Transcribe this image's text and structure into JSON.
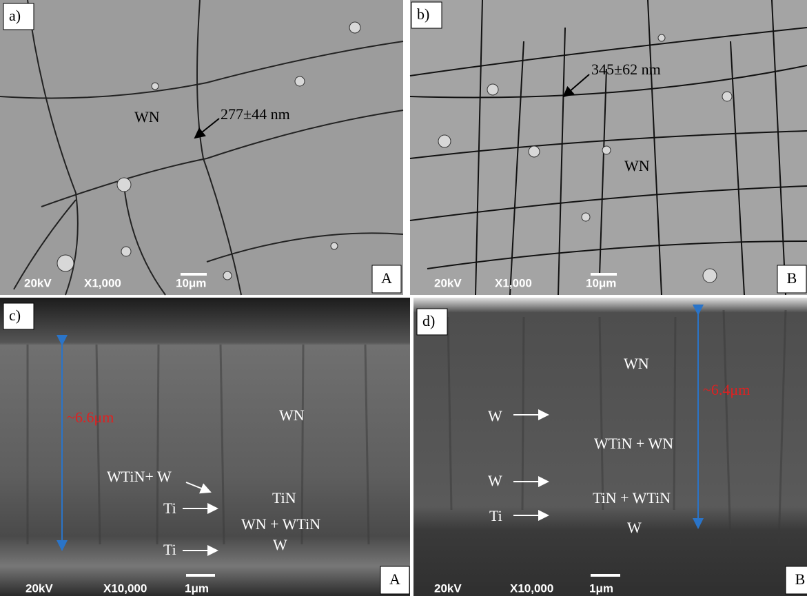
{
  "panels": [
    {
      "label": "a)",
      "corner": "A",
      "voltage": "20kV",
      "magnification": "X1,000",
      "scale": "10μm",
      "annotations": [
        "277±44 nm",
        "WN"
      ]
    },
    {
      "label": "b)",
      "corner": "B",
      "voltage": "20kV",
      "magnification": "X1,000",
      "scale": "10μm",
      "annotations": [
        "345±62 nm",
        "WN"
      ]
    },
    {
      "label": "c)",
      "corner": "A",
      "voltage": "20kV",
      "magnification": "X10,000",
      "scale": "1μm",
      "annotations": [
        "~6.6μm",
        "WN",
        "WTiN+ W",
        "TiN",
        "Ti",
        "WN + WTiN",
        "Ti",
        "W"
      ]
    },
    {
      "label": "d)",
      "corner": "B",
      "voltage": "20kV",
      "magnification": "X10,000",
      "scale": "1μm",
      "annotations": [
        "WN",
        "~6.4μm",
        "W",
        "WTiN + WN",
        "W",
        "TiN + WTiN",
        "Ti",
        "W"
      ]
    }
  ]
}
